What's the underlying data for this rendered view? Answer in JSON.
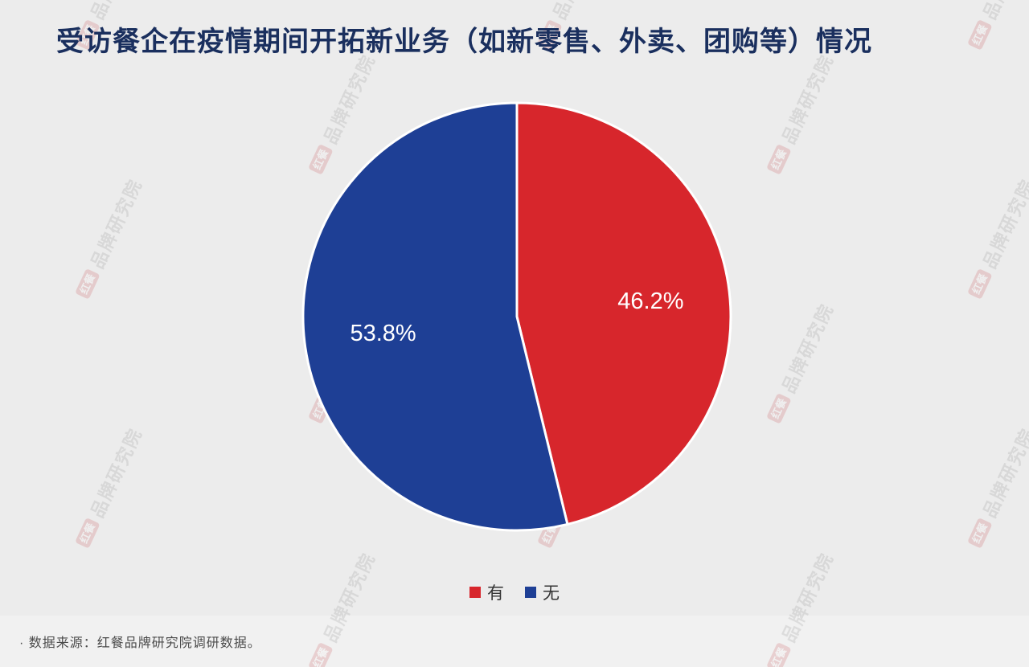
{
  "page": {
    "title": "受访餐企在疫情期间开拓新业务（如新零售、外卖、团购等）情况",
    "footer": "· 数据来源：红餐品牌研究院调研数据。",
    "watermark": {
      "logo": "红餐",
      "text": "品牌研究院"
    }
  },
  "chart_data": {
    "type": "pie",
    "title": "受访餐企在疫情期间开拓新业务（如新零售、外卖、团购等）情况",
    "labels": [
      "有",
      "无"
    ],
    "values": [
      46.2,
      53.8
    ],
    "value_labels": [
      "46.2%",
      "53.8%"
    ],
    "colors": [
      "#d7262c",
      "#1e3f95"
    ],
    "legend_position": "bottom",
    "start_angle_deg": 0,
    "direction": "clockwise",
    "slice_divider_color": "#ffffff",
    "source_note": "数据来源：红餐品牌研究院调研数据。"
  }
}
